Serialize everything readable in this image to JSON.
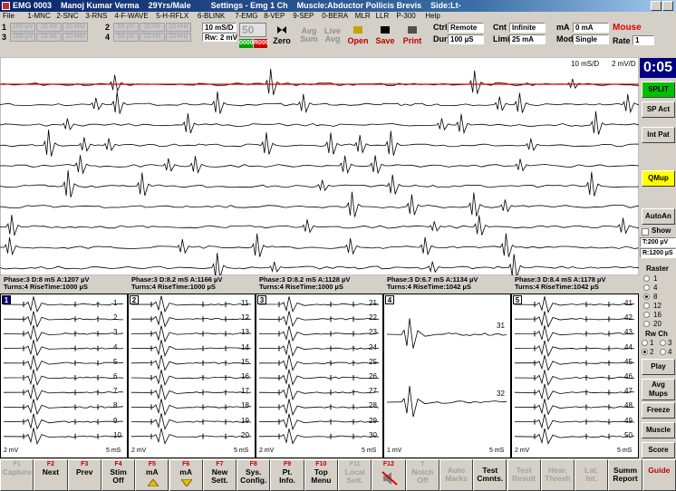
{
  "title_bar": {
    "app": "EMG 0003",
    "patient": "Manoj Kumar Verma",
    "age": "29Yrs/Male",
    "settings": "Settings - Emg 1 Ch",
    "muscle": "Muscle:Abductor Pollicis Brevis",
    "side": "Side:Lt-"
  },
  "menu": [
    "File",
    "1-MNC",
    "2-SNC",
    "3-RNS",
    "4-F-WAVE",
    "5-H-RFLX",
    "6-BLINK",
    "7-EMG",
    "8-VEP",
    "9-SEP",
    "0-BERA",
    "MLR",
    "LLR",
    "P-300",
    "Help"
  ],
  "toolbar": {
    "channels": [
      {
        "id": "1",
        "cells": [
          "100 µV",
          "20 Hz",
          "10 kHz"
        ]
      },
      {
        "id": "2",
        "cells": [
          "50 µV",
          "20 Hz",
          "10 kHz"
        ]
      },
      {
        "id": "3",
        "cells": [
          "100 µV",
          "20 Hz",
          "10 kHz"
        ]
      },
      {
        "id": "4",
        "cells": [
          "50 µV",
          "20 Hz",
          "10 kHz"
        ]
      }
    ],
    "sweep": "10 mS/D",
    "raw": "Rw: 2 mV",
    "counter": "50",
    "count_green": "0000",
    "count_red": "R000",
    "buttons": [
      {
        "label": [
          "Zero"
        ],
        "enabled": true,
        "icon": "zero"
      },
      {
        "label": [
          "Avg",
          "Sum"
        ],
        "enabled": false
      },
      {
        "label": [
          "Live",
          "Avg"
        ],
        "enabled": false
      },
      {
        "label": [
          "Open"
        ],
        "enabled": true,
        "icon": "open",
        "color": "#c00000"
      },
      {
        "label": [
          "Save"
        ],
        "enabled": true,
        "icon": "save",
        "color": "#c00000"
      },
      {
        "label": [
          "Print"
        ],
        "enabled": true,
        "icon": "print",
        "color": "#c00000"
      }
    ],
    "fields": [
      {
        "label": "Ctrl",
        "value": "Remote"
      },
      {
        "label": "Dur",
        "value": "100 µS"
      },
      {
        "label": "Cnt",
        "value": "Infinite"
      },
      {
        "label": "Limit",
        "value": "25 mA"
      },
      {
        "label": "mA",
        "value": "0 mA"
      },
      {
        "label": "Mode",
        "value": "Single"
      }
    ],
    "mouse": "Mouse",
    "rate_label": "Rate",
    "rate": "1"
  },
  "trace_area": {
    "sweep": "10 mS/D",
    "gain": "2 mV/D"
  },
  "side": {
    "timer": "0:05",
    "buttons_top": [
      {
        "label": "SPLIT",
        "color": "#00c000"
      },
      {
        "label": "SP Act"
      },
      {
        "label": "Int Pat"
      },
      {
        "label": "QMup",
        "color": "#ffff00"
      },
      {
        "label": "AutoAn"
      }
    ],
    "show": "Show",
    "threshold": "T:200 µV",
    "rise": "R:1200 µS",
    "raster": {
      "label": "Raster",
      "options": [
        "1",
        "4",
        "8",
        "12",
        "16",
        "20"
      ],
      "selected": "8"
    },
    "raw_channel": {
      "label": "Rw Ch",
      "options": [
        "1",
        "3",
        "2",
        "4"
      ],
      "selected": "2"
    },
    "buttons_bottom": [
      {
        "label": "Play"
      },
      {
        "label": "Avg Mups"
      },
      {
        "label": "Freeze"
      },
      {
        "label": "Muscle"
      },
      {
        "label": "Score"
      }
    ]
  },
  "mups": [
    {
      "stats": [
        "Phase:3 D:8 mS A:1207 µV",
        "Turns:4 RiseTime:1000 µS"
      ],
      "number": "1",
      "traces": [
        "1",
        "2",
        "3",
        "4",
        "5",
        "6",
        "7",
        "8",
        "9",
        "10"
      ],
      "gain": "2 mV",
      "time": "5 mS"
    },
    {
      "stats": [
        "Phase:3 D:8.2 mS A:1166 µV",
        "Turns:4 RiseTime:1000 µS"
      ],
      "number": "2",
      "traces": [
        "11",
        "12",
        "13",
        "14",
        "15",
        "16",
        "17",
        "18",
        "19",
        "20"
      ],
      "gain": "2 mV",
      "time": "5 mS"
    },
    {
      "stats": [
        "Phase:3 D:8.2 mS A:1128 µV",
        "Turns:4 RiseTime:1000 µS"
      ],
      "number": "3",
      "traces": [
        "21",
        "22",
        "23",
        "24",
        "25",
        "26",
        "27",
        "28",
        "29",
        "30"
      ],
      "gain": "2 mV",
      "time": "5 mS"
    },
    {
      "stats": [
        "Phase:3 D:6.7 mS A:1134 µV",
        "Turns:4 RiseTime:1042 µS"
      ],
      "number": "4",
      "traces": [
        "31",
        "32"
      ],
      "gain": "1 mV",
      "time": "5 mS"
    },
    {
      "stats": [
        "Phase:3 D:8.4 mS A:1178 µV",
        "Turns:4 RiseTime:1042 µS"
      ],
      "number": "5",
      "traces": [
        "41",
        "42",
        "43",
        "44",
        "45",
        "46",
        "47",
        "48",
        "49",
        "50"
      ],
      "gain": "2 mV",
      "time": "5 mS"
    }
  ],
  "fkeys": [
    {
      "key": "F1",
      "label": [
        "Capture"
      ],
      "enabled": false
    },
    {
      "key": "F2",
      "label": [
        "Next"
      ],
      "enabled": true
    },
    {
      "key": "F3",
      "label": [
        "Prev"
      ],
      "enabled": true
    },
    {
      "key": "F4",
      "label": [
        "Stim",
        "Off"
      ],
      "enabled": true
    },
    {
      "key": "F5",
      "label": [
        "mA"
      ],
      "enabled": true,
      "arrow": "up"
    },
    {
      "key": "F6",
      "label": [
        "mA"
      ],
      "enabled": true,
      "arrow": "down"
    },
    {
      "key": "F7",
      "label": [
        "New",
        "Sett."
      ],
      "enabled": true
    },
    {
      "key": "F8",
      "label": [
        "Sys.",
        "Config."
      ],
      "enabled": true
    },
    {
      "key": "F9",
      "label": [
        "Pt.",
        "Info."
      ],
      "enabled": true
    },
    {
      "key": "F10",
      "label": [
        "Top",
        "Menu"
      ],
      "enabled": true
    },
    {
      "key": "F11",
      "label": [
        "Local",
        "Sett."
      ],
      "enabled": false
    },
    {
      "key": "F12",
      "enabled": true,
      "icon": "mute"
    },
    {
      "key": "T",
      "label": [
        "Notch",
        "Off"
      ],
      "enabled": false
    },
    {
      "label": [
        "Auto",
        "Marks"
      ],
      "enabled": false
    },
    {
      "label": [
        "Test",
        "Cmnts."
      ],
      "enabled": true
    },
    {
      "label": [
        "Test",
        "Result"
      ],
      "enabled": false
    },
    {
      "label": [
        "Hear.",
        "Thresh"
      ],
      "enabled": false
    },
    {
      "label": [
        "Lat.",
        "Int."
      ],
      "enabled": false
    },
    {
      "label": [
        "Summ",
        "Report"
      ],
      "enabled": true
    },
    {
      "label": [
        "Guide"
      ],
      "enabled": true,
      "color": "#c00000"
    }
  ]
}
